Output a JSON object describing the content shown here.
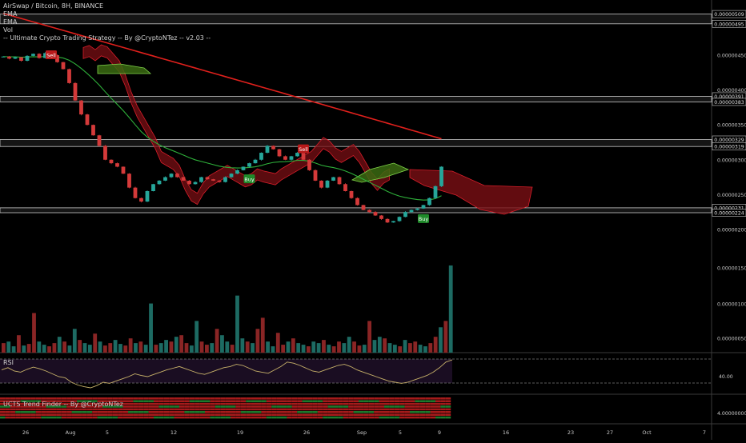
{
  "legend": {
    "title": "AirSwap / Bitcoin, 8H, BINANCE",
    "ema1": "EMA",
    "ema2": "EMA",
    "vol": "Vol",
    "strategy": "-- Ultimate Crypto Trading Strategy -- By @CryptoNTez -- v2.03 --"
  },
  "chart_data": [
    {
      "type": "candlestick",
      "pair": "AirSwap / Bitcoin",
      "timeframe": "8H",
      "exchange": "BINANCE",
      "x_tick_labels": [
        "26",
        "Aug",
        "5",
        "12",
        "19",
        "26",
        "Sep",
        "5",
        "9",
        "16",
        "23",
        "27",
        "Oct",
        "7"
      ],
      "y_tick_labels": [
        "0.00000450",
        "0.00000400",
        "0.00000350",
        "0.00000300",
        "0.00000250",
        "0.00000200"
      ],
      "ylim": [
        1.85e-06,
        5.2e-06
      ],
      "price_level_labels": [
        {
          "label": "0.00000509",
          "value": 5.09e-06
        },
        {
          "label": "0.00000495",
          "value": 4.95e-06
        },
        {
          "label": "0.00000391",
          "value": 3.91e-06
        },
        {
          "label": "0.00000383",
          "value": 3.83e-06
        },
        {
          "label": "0.00000329",
          "value": 3.29e-06
        },
        {
          "label": "0.00000319",
          "value": 3.19e-06
        },
        {
          "label": "0.00000231",
          "value": 2.31e-06
        },
        {
          "label": "0.00000224",
          "value": 2.24e-06
        }
      ],
      "signals": [
        {
          "text": "Sell",
          "date_index": 8,
          "value": 4.5e-06
        },
        {
          "text": "Buy",
          "date_index": 41,
          "value": 2.72e-06
        },
        {
          "text": "Sell",
          "date_index": 50,
          "value": 3.15e-06
        },
        {
          "text": "Buy",
          "date_index": 70,
          "value": 2.15e-06
        }
      ],
      "closes_approx": [
        4.48e-06,
        4.45e-06,
        4.47e-06,
        4.42e-06,
        4.49e-06,
        4.52e-06,
        4.46e-06,
        4.53e-06,
        4.5e-06,
        4.4e-06,
        4.3e-06,
        4.1e-06,
        3.85e-06,
        3.65e-06,
        3.5e-06,
        3.35e-06,
        3.2e-06,
        3e-06,
        2.95e-06,
        2.9e-06,
        2.8e-06,
        2.6e-06,
        2.45e-06,
        2.4e-06,
        2.55e-06,
        2.65e-06,
        2.7e-06,
        2.75e-06,
        2.8e-06,
        2.75e-06,
        2.7e-06,
        2.65e-06,
        2.68e-06,
        2.75e-06,
        2.72e-06,
        2.7e-06,
        2.68e-06,
        2.75e-06,
        2.8e-06,
        2.85e-06,
        2.9e-06,
        2.95e-06,
        3e-06,
        3.1e-06,
        3.2e-06,
        3.15e-06,
        3.05e-06,
        3e-06,
        3.05e-06,
        3.1e-06,
        3e-06,
        2.85e-06,
        2.7e-06,
        2.6e-06,
        2.7e-06,
        2.75e-06,
        2.65e-06,
        2.55e-06,
        2.45e-06,
        2.35e-06,
        2.28e-06,
        2.25e-06,
        2.2e-06,
        2.15e-06,
        2.1e-06,
        2.12e-06,
        2.18e-06,
        2.25e-06,
        2.28e-06,
        2.3e-06,
        2.35e-06,
        2.45e-06,
        2.62e-06,
        2.9e-06
      ]
    },
    {
      "type": "bar",
      "name": "Vol",
      "y_tick_labels": [
        "0.00000150",
        "0.00000100",
        "0.00000050"
      ],
      "values": [
        12,
        14,
        8,
        22,
        9,
        11,
        50,
        14,
        10,
        8,
        12,
        20,
        14,
        9,
        30,
        16,
        12,
        10,
        24,
        14,
        9,
        12,
        16,
        11,
        9,
        18,
        12,
        14,
        10,
        62,
        10,
        12,
        16,
        14,
        20,
        22,
        12,
        9,
        40,
        14,
        10,
        12,
        30,
        22,
        14,
        10,
        72,
        18,
        14,
        12,
        30,
        44,
        14,
        8,
        25,
        10,
        14,
        18,
        12,
        10,
        8,
        14,
        12,
        16,
        10,
        8,
        14,
        12,
        20,
        14,
        9,
        10,
        40,
        16,
        20,
        18,
        12,
        10,
        8,
        16,
        12,
        14,
        10,
        8,
        12,
        20,
        32,
        40,
        110
      ]
    },
    {
      "type": "line",
      "name": "RSI",
      "y_tick_labels": [
        "40.00"
      ],
      "values": [
        52,
        56,
        50,
        48,
        53,
        57,
        54,
        50,
        45,
        40,
        38,
        30,
        25,
        22,
        20,
        24,
        30,
        28,
        32,
        36,
        40,
        45,
        42,
        40,
        44,
        48,
        52,
        55,
        58,
        54,
        50,
        46,
        44,
        48,
        52,
        56,
        58,
        62,
        60,
        55,
        50,
        48,
        46,
        52,
        58,
        66,
        64,
        60,
        55,
        50,
        48,
        52,
        56,
        60,
        62,
        58,
        52,
        48,
        44,
        40,
        36,
        32,
        30,
        28,
        30,
        34,
        38,
        42,
        48,
        56,
        66,
        70
      ]
    },
    {
      "type": "heatmap",
      "name": "UCTS Trend Finder -- By @CryptoNTez",
      "y_tick_labels": [
        "4.00000000"
      ]
    }
  ]
}
